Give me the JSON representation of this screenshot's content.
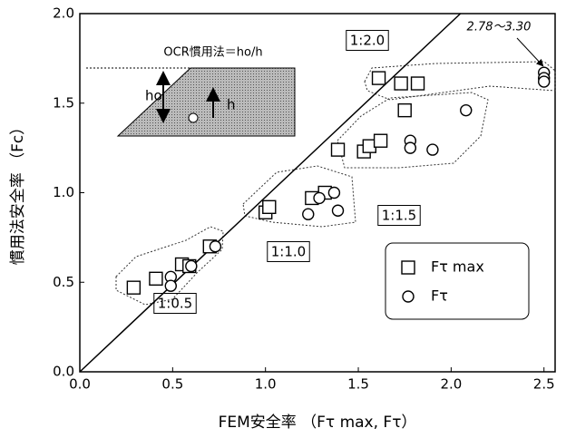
{
  "chart_data": {
    "type": "scatter",
    "x_label": "FEM安全率 （Fτ max, Fτ）",
    "y_label": "慣用法安全率 （Fc）",
    "xlim": [
      0,
      2.56
    ],
    "ylim": [
      0,
      2.0
    ],
    "xticks": [
      {
        "value": 0,
        "label": "0.0"
      },
      0.5,
      {
        "value": 1,
        "label": "1.0"
      },
      1.5,
      {
        "value": 2,
        "label": "2.0"
      },
      2.5
    ],
    "yticks": [
      {
        "value": 0,
        "label": "0.0"
      },
      0.5,
      {
        "value": 1,
        "label": "1.0"
      },
      1.5,
      {
        "value": 2,
        "label": "2.0"
      }
    ],
    "series": [
      {
        "name": "Fτ max",
        "marker": "square",
        "color": "#000000",
        "x": [
          0.29,
          0.41,
          0.55,
          0.59,
          0.7,
          1.0,
          1.02,
          1.25,
          1.32,
          1.39,
          1.53,
          1.56,
          1.62,
          1.61,
          1.73,
          1.82,
          1.75
        ],
        "values": [
          0.47,
          0.52,
          0.6,
          0.59,
          0.7,
          0.89,
          0.92,
          0.97,
          1.0,
          1.24,
          1.23,
          1.26,
          1.29,
          1.64,
          1.61,
          1.61,
          1.46
        ]
      },
      {
        "name": "Fτ",
        "marker": "circle",
        "color": "#000000",
        "x": [
          0.49,
          0.49,
          0.6,
          0.73,
          1.23,
          1.29,
          1.37,
          1.39,
          1.78,
          1.78,
          1.9,
          2.08,
          2.5,
          2.5,
          2.5
        ],
        "values": [
          0.53,
          0.48,
          0.59,
          0.7,
          0.88,
          0.97,
          1.0,
          0.9,
          1.29,
          1.25,
          1.24,
          1.46,
          1.67,
          1.64,
          1.62
        ]
      }
    ],
    "reference_line": {
      "x": [
        0,
        2.05
      ],
      "values": [
        0,
        2.0
      ]
    },
    "annotations": [
      "1:2.0",
      "1:1.5",
      "1:1.0",
      "1:0.5",
      "2.78～3.30"
    ],
    "inset": {
      "formula": "OCR慣用法＝ho/h",
      "h0": "ho",
      "h": "h"
    }
  }
}
